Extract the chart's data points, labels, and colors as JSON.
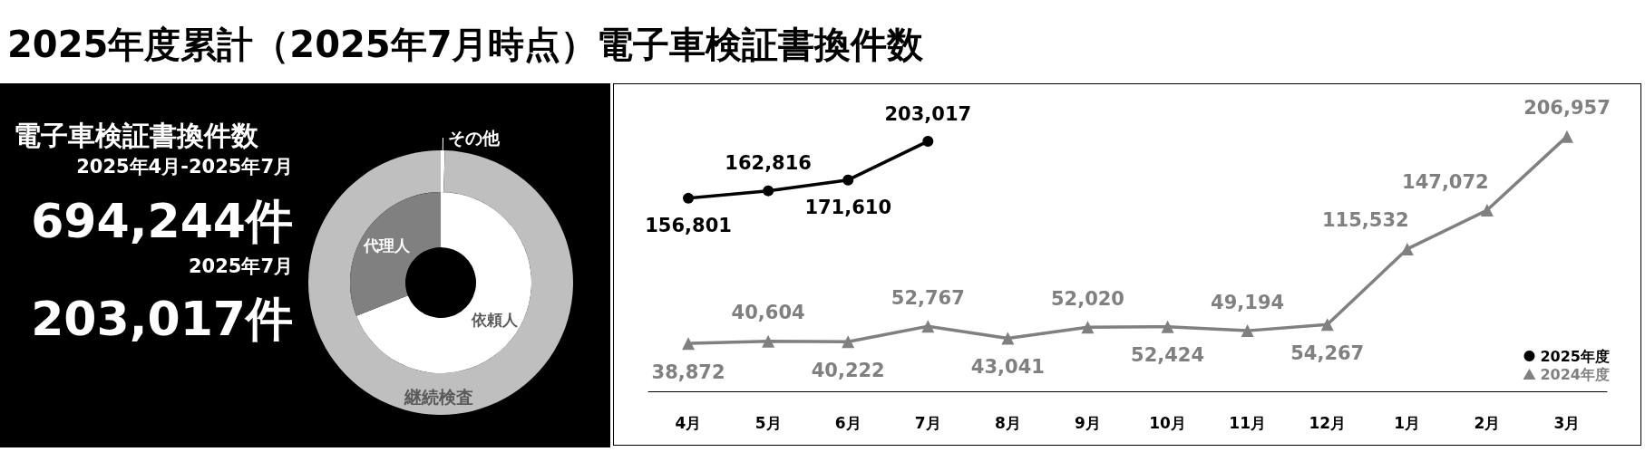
{
  "chart_data": [
    {
      "type": "other",
      "title": "2025年度累計（2025年7月時点）電子車検証書換件数",
      "subtitle": "電子車検証書換件数",
      "annotations": [
        "2025年4月-2025年7月",
        "694,244件",
        "2025年7月",
        "203,017件"
      ]
    },
    {
      "type": "donut",
      "categories": [
        "その他",
        "継続検査"
      ],
      "values": [
        0.5,
        99.5
      ],
      "colors": [
        "#ffffff",
        "#bfbfbf"
      ]
    },
    {
      "type": "donut",
      "categories": [
        "依頼人",
        "代理人"
      ],
      "values": [
        69,
        31
      ],
      "colors": [
        "#ffffff",
        "#808080"
      ]
    },
    {
      "type": "line",
      "categories": [
        "4月",
        "5月",
        "6月",
        "7月",
        "8月",
        "9月",
        "10月",
        "11月",
        "12月",
        "1月",
        "2月",
        "3月"
      ],
      "series": [
        {
          "name": "2025年度",
          "color": "#000000",
          "marker": "circle",
          "values": [
            156801,
            162816,
            171610,
            203017,
            null,
            null,
            null,
            null,
            null,
            null,
            null,
            null
          ],
          "value_labels": [
            "156,801",
            "162,816",
            "171,610",
            "203,017",
            null,
            null,
            null,
            null,
            null,
            null,
            null,
            null
          ]
        },
        {
          "name": "2024年度",
          "color": "#808080",
          "marker": "triangle",
          "values": [
            38872,
            40604,
            40222,
            52767,
            43041,
            52020,
            52424,
            49194,
            54267,
            115532,
            147072,
            206957
          ],
          "value_labels": [
            "38,872",
            "40,604",
            "40,222",
            "52,767",
            "43,041",
            "52,020",
            "52,424",
            "49,194",
            "54,267",
            "115,532",
            "147,072",
            "206,957"
          ]
        }
      ],
      "legend": "bottom right",
      "grid": false
    }
  ]
}
